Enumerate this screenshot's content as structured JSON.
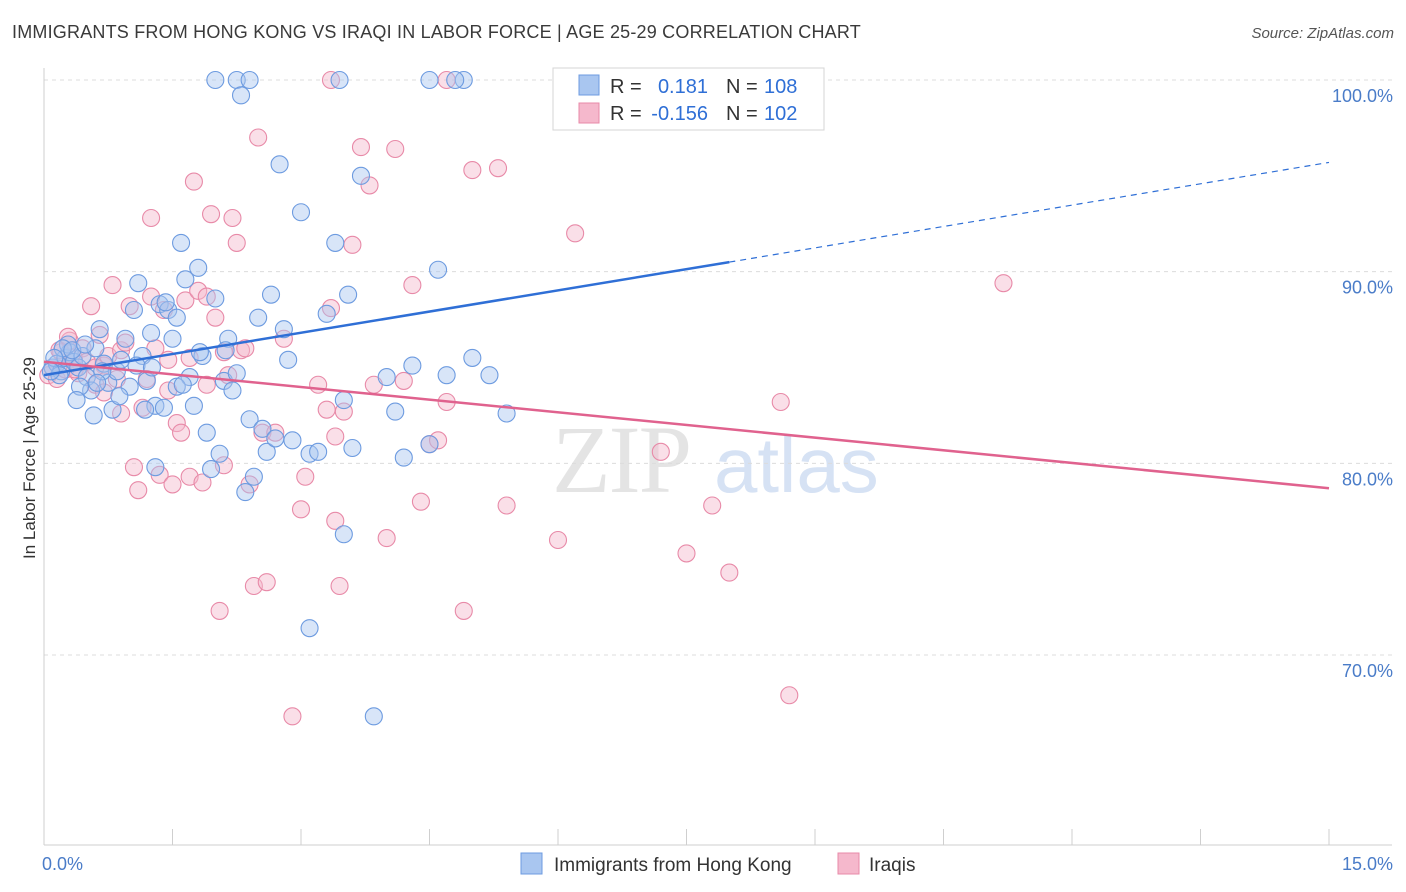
{
  "title": "IMMIGRANTS FROM HONG KONG VS IRAQI IN LABOR FORCE | AGE 25-29 CORRELATION CHART",
  "source": "Source: ZipAtlas.com",
  "watermark": {
    "zip": "ZIP",
    "atlas": "atlas"
  },
  "colors": {
    "blue_fill": "#a9c6f0",
    "blue_stroke": "#6d9be0",
    "blue_line": "#2f6fd6",
    "pink_fill": "#f5b8cc",
    "pink_stroke": "#e88aa8",
    "pink_line": "#e0628e",
    "grid": "#dcdcdc",
    "axis_label": "#4a7cc8"
  },
  "chart_data": {
    "type": "scatter",
    "title": "IMMIGRANTS FROM HONG KONG VS IRAQI IN LABOR FORCE | AGE 25-29 CORRELATION CHART",
    "xlabel": "",
    "ylabel": "In Labor Force | Age 25-29",
    "xlim": [
      0,
      15
    ],
    "ylim": [
      60,
      101.5
    ],
    "x_tick_labels": [
      {
        "value": 0,
        "label": "0.0%"
      },
      {
        "value": 15,
        "label": "15.0%"
      }
    ],
    "y_ticks": [
      {
        "value": 100,
        "label": "100.0%"
      },
      {
        "value": 90,
        "label": "90.0%"
      },
      {
        "value": 80,
        "label": "80.0%"
      },
      {
        "value": 70,
        "label": "70.0%"
      }
    ],
    "legend": {
      "rows": [
        {
          "r_label": "R =",
          "r_value": "0.181",
          "n_label": "N =",
          "n_value": "108",
          "series": "blue"
        },
        {
          "r_label": "R =",
          "r_value": "-0.156",
          "n_label": "N =",
          "n_value": "102",
          "series": "pink"
        }
      ]
    },
    "series": [
      {
        "name": "Immigrants from Hong Kong",
        "color": "blue",
        "trend": {
          "x0": 0.0,
          "y0": 84.6,
          "x1": 8.0,
          "y1": 90.5,
          "dash_x1": 15.0,
          "dash_y1": 95.7
        },
        "points": [
          [
            0.1,
            85.0
          ],
          [
            0.15,
            85.2
          ],
          [
            0.2,
            84.8
          ],
          [
            0.25,
            85.5
          ],
          [
            0.3,
            85.8
          ],
          [
            0.18,
            84.6
          ],
          [
            0.35,
            85.3
          ],
          [
            0.4,
            85.0
          ],
          [
            0.28,
            86.2
          ],
          [
            0.45,
            85.6
          ],
          [
            0.5,
            84.5
          ],
          [
            0.55,
            83.8
          ],
          [
            0.6,
            86.0
          ],
          [
            0.65,
            87.0
          ],
          [
            0.7,
            85.2
          ],
          [
            0.75,
            84.2
          ],
          [
            0.8,
            82.8
          ],
          [
            0.85,
            84.8
          ],
          [
            0.9,
            85.4
          ],
          [
            0.95,
            86.5
          ],
          [
            1.0,
            84.0
          ],
          [
            1.05,
            88.0
          ],
          [
            1.1,
            89.4
          ],
          [
            1.15,
            85.6
          ],
          [
            1.2,
            84.3
          ],
          [
            1.25,
            86.8
          ],
          [
            1.3,
            83.0
          ],
          [
            1.35,
            88.3
          ],
          [
            1.4,
            82.9
          ],
          [
            1.45,
            88.0
          ],
          [
            1.5,
            86.5
          ],
          [
            1.55,
            87.6
          ],
          [
            1.6,
            91.5
          ],
          [
            1.65,
            89.6
          ],
          [
            1.7,
            84.5
          ],
          [
            1.75,
            83.0
          ],
          [
            1.8,
            90.2
          ],
          [
            1.85,
            85.6
          ],
          [
            1.9,
            81.6
          ],
          [
            1.95,
            79.7
          ],
          [
            2.0,
            88.6
          ],
          [
            2.05,
            80.5
          ],
          [
            2.1,
            84.3
          ],
          [
            2.15,
            86.5
          ],
          [
            2.2,
            83.8
          ],
          [
            2.25,
            84.7
          ],
          [
            2.35,
            78.5
          ],
          [
            2.4,
            82.3
          ],
          [
            2.45,
            79.3
          ],
          [
            2.5,
            87.6
          ],
          [
            2.55,
            81.8
          ],
          [
            2.6,
            80.6
          ],
          [
            2.65,
            88.8
          ],
          [
            2.7,
            81.3
          ],
          [
            2.75,
            95.6
          ],
          [
            2.8,
            87.0
          ],
          [
            2.85,
            85.4
          ],
          [
            2.9,
            81.2
          ],
          [
            3.0,
            93.1
          ],
          [
            3.1,
            80.5
          ],
          [
            3.2,
            80.6
          ],
          [
            3.3,
            87.8
          ],
          [
            3.4,
            91.5
          ],
          [
            3.5,
            83.3
          ],
          [
            3.55,
            88.8
          ],
          [
            3.6,
            80.8
          ],
          [
            3.7,
            95.0
          ],
          [
            4.0,
            84.5
          ],
          [
            4.1,
            82.7
          ],
          [
            4.2,
            80.3
          ],
          [
            4.3,
            85.1
          ],
          [
            4.5,
            81.0
          ],
          [
            4.6,
            90.1
          ],
          [
            4.7,
            84.6
          ],
          [
            4.9,
            100.0
          ],
          [
            5.0,
            85.5
          ],
          [
            5.2,
            84.6
          ],
          [
            5.4,
            82.6
          ],
          [
            2.0,
            100.0
          ],
          [
            2.25,
            100.0
          ],
          [
            2.3,
            99.2
          ],
          [
            2.4,
            100.0
          ],
          [
            3.45,
            100.0
          ],
          [
            4.5,
            100.0
          ],
          [
            4.8,
            100.0
          ],
          [
            3.5,
            76.3
          ],
          [
            3.1,
            71.4
          ],
          [
            3.85,
            66.8
          ],
          [
            1.3,
            79.8
          ],
          [
            1.55,
            84.0
          ],
          [
            0.42,
            84.0
          ],
          [
            0.38,
            83.3
          ],
          [
            0.22,
            86.0
          ],
          [
            0.12,
            85.5
          ],
          [
            0.33,
            85.9
          ],
          [
            0.58,
            82.5
          ],
          [
            0.68,
            84.8
          ],
          [
            0.88,
            83.5
          ],
          [
            1.08,
            85.1
          ],
          [
            1.18,
            82.8
          ],
          [
            1.42,
            88.4
          ],
          [
            1.62,
            84.1
          ],
          [
            1.82,
            85.8
          ],
          [
            2.12,
            85.9
          ],
          [
            1.26,
            85.0
          ],
          [
            0.48,
            86.2
          ],
          [
            0.08,
            84.8
          ],
          [
            0.62,
            84.2
          ]
        ]
      },
      {
        "name": "Iraqis",
        "color": "pink",
        "trend": {
          "x0": 0.0,
          "y0": 85.3,
          "x1": 15.0,
          "y1": 78.7
        },
        "points": [
          [
            0.05,
            84.6
          ],
          [
            0.1,
            85.0
          ],
          [
            0.15,
            84.4
          ],
          [
            0.2,
            85.8
          ],
          [
            0.25,
            84.9
          ],
          [
            0.3,
            86.4
          ],
          [
            0.35,
            85.5
          ],
          [
            0.4,
            84.7
          ],
          [
            0.45,
            86.0
          ],
          [
            0.5,
            85.3
          ],
          [
            0.55,
            88.2
          ],
          [
            0.6,
            84.1
          ],
          [
            0.65,
            86.7
          ],
          [
            0.7,
            85.1
          ],
          [
            0.75,
            85.6
          ],
          [
            0.8,
            89.3
          ],
          [
            0.85,
            84.4
          ],
          [
            0.9,
            85.9
          ],
          [
            0.95,
            86.3
          ],
          [
            1.0,
            88.2
          ],
          [
            1.05,
            79.8
          ],
          [
            1.1,
            78.6
          ],
          [
            1.15,
            82.9
          ],
          [
            1.2,
            84.4
          ],
          [
            1.25,
            92.8
          ],
          [
            1.3,
            86.0
          ],
          [
            1.35,
            79.4
          ],
          [
            1.4,
            88.0
          ],
          [
            1.45,
            83.8
          ],
          [
            1.5,
            78.9
          ],
          [
            1.55,
            82.1
          ],
          [
            1.6,
            81.6
          ],
          [
            1.65,
            88.5
          ],
          [
            1.7,
            79.3
          ],
          [
            1.75,
            94.7
          ],
          [
            1.8,
            89.0
          ],
          [
            1.85,
            79.0
          ],
          [
            1.9,
            84.1
          ],
          [
            1.95,
            93.0
          ],
          [
            2.0,
            87.6
          ],
          [
            2.05,
            72.3
          ],
          [
            2.1,
            79.9
          ],
          [
            2.15,
            84.6
          ],
          [
            2.2,
            92.8
          ],
          [
            2.25,
            91.5
          ],
          [
            2.3,
            85.9
          ],
          [
            2.4,
            78.9
          ],
          [
            2.45,
            73.6
          ],
          [
            2.5,
            97.0
          ],
          [
            2.55,
            81.6
          ],
          [
            2.6,
            73.8
          ],
          [
            2.7,
            81.6
          ],
          [
            2.8,
            86.5
          ],
          [
            2.9,
            66.8
          ],
          [
            3.0,
            77.6
          ],
          [
            3.05,
            79.3
          ],
          [
            3.2,
            84.1
          ],
          [
            3.3,
            82.8
          ],
          [
            3.4,
            81.4
          ],
          [
            3.45,
            73.6
          ],
          [
            3.5,
            82.7
          ],
          [
            3.6,
            91.4
          ],
          [
            3.7,
            96.5
          ],
          [
            3.8,
            94.5
          ],
          [
            3.85,
            84.1
          ],
          [
            4.0,
            76.1
          ],
          [
            4.1,
            96.4
          ],
          [
            4.2,
            84.3
          ],
          [
            4.3,
            89.3
          ],
          [
            4.4,
            78.0
          ],
          [
            4.5,
            81.0
          ],
          [
            4.6,
            81.2
          ],
          [
            4.7,
            83.2
          ],
          [
            4.9,
            72.3
          ],
          [
            5.0,
            95.3
          ],
          [
            5.3,
            95.4
          ],
          [
            5.4,
            77.8
          ],
          [
            6.0,
            76.0
          ],
          [
            6.2,
            92.0
          ],
          [
            7.2,
            80.6
          ],
          [
            7.5,
            75.3
          ],
          [
            7.8,
            77.8
          ],
          [
            8.0,
            74.3
          ],
          [
            8.6,
            83.2
          ],
          [
            8.7,
            67.9
          ],
          [
            11.2,
            89.4
          ],
          [
            3.35,
            100.0
          ],
          [
            4.7,
            100.0
          ],
          [
            3.4,
            77.0
          ],
          [
            3.35,
            88.1
          ],
          [
            1.7,
            85.5
          ],
          [
            2.1,
            85.8
          ],
          [
            1.45,
            85.4
          ],
          [
            2.35,
            86.0
          ],
          [
            0.9,
            82.6
          ],
          [
            1.25,
            88.7
          ],
          [
            1.9,
            88.7
          ],
          [
            0.7,
            83.7
          ],
          [
            0.6,
            85.0
          ],
          [
            0.36,
            84.9
          ],
          [
            0.18,
            85.9
          ],
          [
            0.28,
            86.6
          ]
        ]
      }
    ]
  }
}
